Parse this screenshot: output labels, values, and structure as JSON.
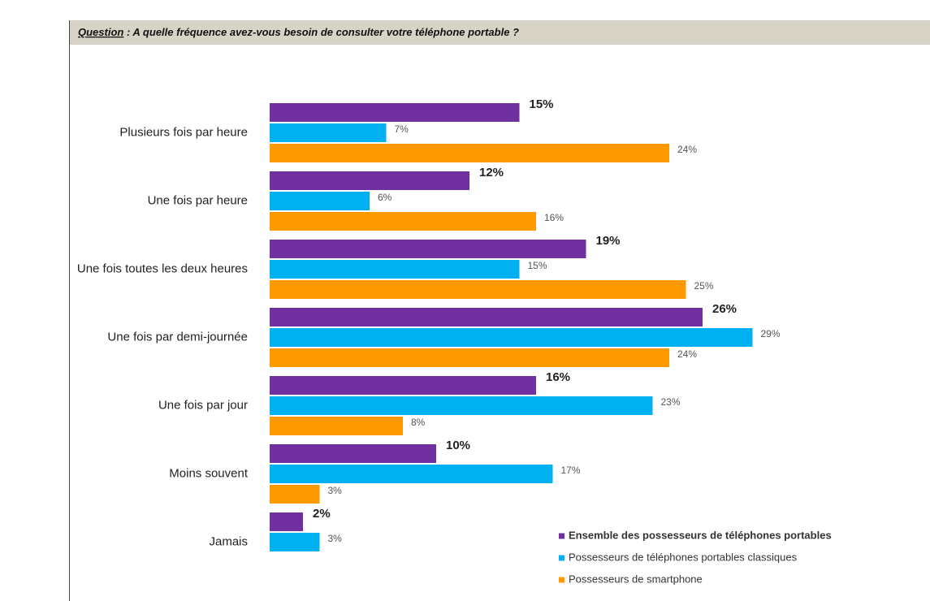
{
  "header": {
    "question_label": "Question",
    "question_text": " : A quelle fréquence avez-vous besoin de consulter votre téléphone portable ?"
  },
  "chart_data": {
    "type": "bar",
    "orientation": "horizontal",
    "categories": [
      "Plusieurs fois par heure",
      "Une fois par heure",
      "Une fois toutes les deux heures",
      "Une fois par demi-journée",
      "Une fois par jour",
      "Moins souvent",
      "Jamais"
    ],
    "series": [
      {
        "name": "Ensemble des possesseurs de téléphones portables",
        "color": "#7030a0",
        "values": [
          15,
          12,
          19,
          26,
          16,
          10,
          2
        ],
        "value_labels": [
          "15%",
          "12%",
          "19%",
          "26%",
          "16%",
          "10%",
          "2%"
        ]
      },
      {
        "name": "Possesseurs de téléphones portables classiques",
        "color": "#00b0f0",
        "values": [
          7,
          6,
          15,
          29,
          23,
          17,
          3
        ],
        "value_labels": [
          "7%",
          "6%",
          "15%",
          "29%",
          "23%",
          "17%",
          "3%"
        ]
      },
      {
        "name": "Possesseurs de smartphone",
        "color": "#ff9900",
        "values": [
          24,
          16,
          25,
          24,
          8,
          3,
          null
        ],
        "value_labels": [
          "24%",
          "16%",
          "25%",
          "24%",
          "8%",
          "3%",
          null
        ]
      }
    ]
  }
}
